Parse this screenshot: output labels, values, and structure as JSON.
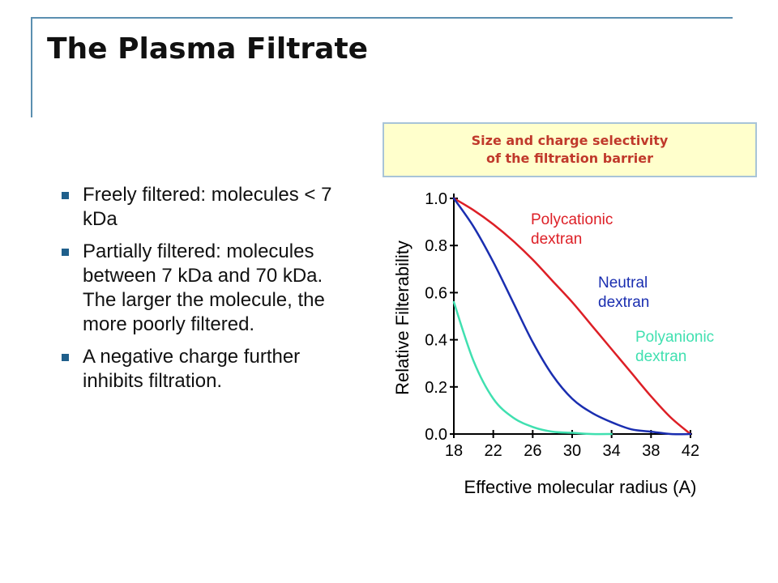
{
  "slide": {
    "title": "The Plasma Filtrate",
    "bullets": [
      "Freely filtered: molecules < 7 kDa",
      "Partially filtered: molecules between 7 kDa and 70 kDa.  The larger the molecule, the more poorly filtered.",
      "A negative charge further inhibits filtration."
    ]
  },
  "chart_box": {
    "line1": "Size and charge selectivity",
    "line2": "of the filtration barrier"
  },
  "chart_data": {
    "type": "line",
    "xlabel": "Effective molecular radius (A)",
    "ylabel": "Relative Filterability",
    "xlim": [
      18,
      42
    ],
    "ylim": [
      0,
      1.0
    ],
    "x_ticks": [
      18,
      22,
      26,
      30,
      34,
      38,
      42
    ],
    "y_ticks": [
      "0.0",
      "0.2",
      "0.4",
      "0.6",
      "0.8",
      "1.0"
    ],
    "grid": false,
    "series": [
      {
        "name": "Polycationic dextran",
        "color": "#dd1f26",
        "x": [
          18,
          20,
          22,
          24,
          26,
          28,
          30,
          32,
          34,
          36,
          38,
          40,
          42
        ],
        "y": [
          1.0,
          0.95,
          0.89,
          0.82,
          0.74,
          0.65,
          0.56,
          0.46,
          0.36,
          0.26,
          0.16,
          0.07,
          0.0
        ]
      },
      {
        "name": "Neutral dextran",
        "color": "#1a2eb0",
        "x": [
          18,
          20,
          22,
          24,
          26,
          28,
          30,
          32,
          34,
          36,
          38,
          40,
          42
        ],
        "y": [
          1.0,
          0.88,
          0.73,
          0.56,
          0.39,
          0.25,
          0.15,
          0.09,
          0.05,
          0.02,
          0.01,
          0.0,
          0.0
        ]
      },
      {
        "name": "Polyanionic dextran",
        "color": "#40e0b0",
        "x": [
          18,
          20,
          22,
          24,
          26,
          28,
          30,
          32,
          34
        ],
        "y": [
          0.56,
          0.31,
          0.15,
          0.07,
          0.03,
          0.01,
          0.005,
          0.0,
          0.0
        ]
      }
    ],
    "annotations": [
      {
        "lines": [
          "Polycationic",
          "dextran"
        ],
        "color": "#dd1f26"
      },
      {
        "lines": [
          "Neutral",
          "dextran"
        ],
        "color": "#1a2eb0"
      },
      {
        "lines": [
          "Polyanionic",
          "dextran"
        ],
        "color": "#40e0b0"
      }
    ]
  }
}
